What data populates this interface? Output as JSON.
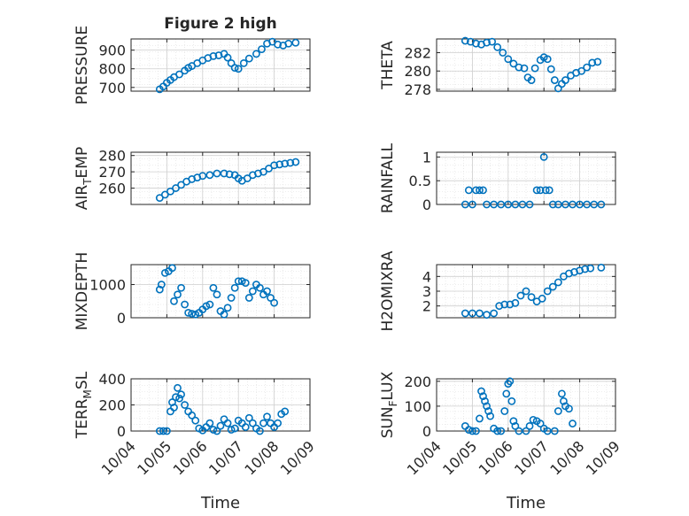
{
  "chart_data": [
    {
      "type": "scatter",
      "title": "Figure 2 high",
      "ylabel": "PRESSURE",
      "ylim": [
        680,
        960
      ],
      "yticks": [
        700,
        800,
        900
      ],
      "xlim": [
        0,
        5
      ],
      "series": [
        {
          "values": [
            [
              0.8,
              690
            ],
            [
              0.9,
              705
            ],
            [
              1.0,
              725
            ],
            [
              1.1,
              740
            ],
            [
              1.2,
              755
            ],
            [
              1.35,
              770
            ],
            [
              1.5,
              790
            ],
            [
              1.6,
              805
            ],
            [
              1.7,
              815
            ],
            [
              1.85,
              830
            ],
            [
              2.0,
              845
            ],
            [
              2.15,
              858
            ],
            [
              2.3,
              868
            ],
            [
              2.45,
              872
            ],
            [
              2.6,
              880
            ],
            [
              2.7,
              860
            ],
            [
              2.8,
              830
            ],
            [
              2.9,
              805
            ],
            [
              3.0,
              800
            ],
            [
              3.15,
              830
            ],
            [
              3.3,
              855
            ],
            [
              3.5,
              880
            ],
            [
              3.65,
              905
            ],
            [
              3.8,
              935
            ],
            [
              3.95,
              945
            ],
            [
              4.1,
              930
            ],
            [
              4.25,
              925
            ],
            [
              4.4,
              935
            ],
            [
              4.6,
              940
            ]
          ]
        }
      ]
    },
    {
      "type": "scatter",
      "ylabel": "THETA",
      "ylim": [
        277.8,
        283.5
      ],
      "yticks": [
        278,
        280,
        282
      ],
      "xlim": [
        0,
        5
      ],
      "series": [
        {
          "values": [
            [
              0.8,
              283.3
            ],
            [
              0.95,
              283.2
            ],
            [
              1.1,
              283.0
            ],
            [
              1.25,
              282.9
            ],
            [
              1.4,
              283.1
            ],
            [
              1.55,
              283.2
            ],
            [
              1.7,
              282.6
            ],
            [
              1.85,
              282.0
            ],
            [
              2.0,
              281.3
            ],
            [
              2.15,
              280.8
            ],
            [
              2.3,
              280.4
            ],
            [
              2.45,
              280.3
            ],
            [
              2.55,
              279.3
            ],
            [
              2.65,
              279.0
            ],
            [
              2.75,
              280.3
            ],
            [
              2.9,
              281.2
            ],
            [
              3.0,
              281.5
            ],
            [
              3.1,
              281.3
            ],
            [
              3.2,
              280.2
            ],
            [
              3.3,
              279.0
            ],
            [
              3.4,
              278.1
            ],
            [
              3.5,
              278.6
            ],
            [
              3.6,
              279.0
            ],
            [
              3.75,
              279.5
            ],
            [
              3.9,
              279.8
            ],
            [
              4.05,
              280.0
            ],
            [
              4.2,
              280.4
            ],
            [
              4.35,
              280.9
            ],
            [
              4.5,
              281.0
            ]
          ]
        }
      ]
    },
    {
      "type": "scatter",
      "ylabel": "AIR_TEMP",
      "ylim": [
        250,
        282
      ],
      "yticks": [
        260,
        270,
        280
      ],
      "xlim": [
        0,
        5
      ],
      "series": [
        {
          "values": [
            [
              0.8,
              254
            ],
            [
              0.95,
              256
            ],
            [
              1.1,
              258
            ],
            [
              1.25,
              260
            ],
            [
              1.4,
              262
            ],
            [
              1.55,
              264
            ],
            [
              1.7,
              265.5
            ],
            [
              1.85,
              266.5
            ],
            [
              2.0,
              267.5
            ],
            [
              2.2,
              268
            ],
            [
              2.4,
              269
            ],
            [
              2.6,
              269
            ],
            [
              2.75,
              268.5
            ],
            [
              2.9,
              268
            ],
            [
              3.0,
              266
            ],
            [
              3.1,
              264.5
            ],
            [
              3.25,
              266
            ],
            [
              3.4,
              268
            ],
            [
              3.55,
              269
            ],
            [
              3.7,
              270
            ],
            [
              3.85,
              272
            ],
            [
              4.0,
              274
            ],
            [
              4.15,
              274.5
            ],
            [
              4.3,
              275
            ],
            [
              4.45,
              275.5
            ],
            [
              4.6,
              276
            ]
          ]
        }
      ]
    },
    {
      "type": "scatter",
      "ylabel": "RAINFALL",
      "ylim": [
        0,
        1.1
      ],
      "yticks": [
        0,
        0.5,
        1
      ],
      "xlim": [
        0,
        5
      ],
      "series": [
        {
          "values": [
            [
              0.8,
              0
            ],
            [
              0.9,
              0.3
            ],
            [
              1.0,
              0
            ],
            [
              1.1,
              0.3
            ],
            [
              1.2,
              0.3
            ],
            [
              1.3,
              0.3
            ],
            [
              1.4,
              0
            ],
            [
              1.6,
              0
            ],
            [
              1.8,
              0
            ],
            [
              2.0,
              0
            ],
            [
              2.2,
              0
            ],
            [
              2.4,
              0
            ],
            [
              2.6,
              0
            ],
            [
              2.8,
              0.3
            ],
            [
              2.9,
              0.3
            ],
            [
              3.0,
              1.0
            ],
            [
              3.05,
              0.3
            ],
            [
              3.15,
              0.3
            ],
            [
              3.25,
              0
            ],
            [
              3.4,
              0
            ],
            [
              3.6,
              0
            ],
            [
              3.8,
              0
            ],
            [
              4.0,
              0
            ],
            [
              4.2,
              0
            ],
            [
              4.4,
              0
            ],
            [
              4.6,
              0
            ]
          ]
        }
      ]
    },
    {
      "type": "scatter",
      "ylabel": "MIXDEPTH",
      "ylim": [
        0,
        1600
      ],
      "yticks": [
        0,
        1000
      ],
      "xlim": [
        0,
        5
      ],
      "series": [
        {
          "values": [
            [
              0.8,
              850
            ],
            [
              0.85,
              1000
            ],
            [
              0.95,
              1350
            ],
            [
              1.05,
              1400
            ],
            [
              1.15,
              1500
            ],
            [
              1.2,
              500
            ],
            [
              1.3,
              700
            ],
            [
              1.4,
              900
            ],
            [
              1.5,
              400
            ],
            [
              1.6,
              150
            ],
            [
              1.7,
              120
            ],
            [
              1.8,
              100
            ],
            [
              1.9,
              150
            ],
            [
              2.0,
              250
            ],
            [
              2.1,
              350
            ],
            [
              2.2,
              400
            ],
            [
              2.3,
              900
            ],
            [
              2.4,
              700
            ],
            [
              2.5,
              200
            ],
            [
              2.6,
              100
            ],
            [
              2.7,
              300
            ],
            [
              2.8,
              600
            ],
            [
              2.9,
              900
            ],
            [
              3.0,
              1100
            ],
            [
              3.1,
              1100
            ],
            [
              3.2,
              1050
            ],
            [
              3.3,
              600
            ],
            [
              3.4,
              800
            ],
            [
              3.5,
              1000
            ],
            [
              3.6,
              900
            ],
            [
              3.7,
              700
            ],
            [
              3.8,
              800
            ],
            [
              3.9,
              600
            ],
            [
              4.0,
              450
            ]
          ]
        }
      ]
    },
    {
      "type": "scatter",
      "ylabel": "H2OMIXRA",
      "ylim": [
        1.2,
        4.8
      ],
      "yticks": [
        2,
        3,
        4
      ],
      "xlim": [
        0,
        5
      ],
      "series": [
        {
          "values": [
            [
              0.8,
              1.5
            ],
            [
              1.0,
              1.5
            ],
            [
              1.2,
              1.5
            ],
            [
              1.4,
              1.4
            ],
            [
              1.6,
              1.5
            ],
            [
              1.75,
              2.0
            ],
            [
              1.9,
              2.1
            ],
            [
              2.05,
              2.1
            ],
            [
              2.2,
              2.2
            ],
            [
              2.35,
              2.7
            ],
            [
              2.5,
              3.0
            ],
            [
              2.65,
              2.6
            ],
            [
              2.8,
              2.3
            ],
            [
              2.95,
              2.5
            ],
            [
              3.1,
              3.0
            ],
            [
              3.25,
              3.3
            ],
            [
              3.4,
              3.6
            ],
            [
              3.55,
              4.0
            ],
            [
              3.7,
              4.2
            ],
            [
              3.85,
              4.3
            ],
            [
              4.0,
              4.4
            ],
            [
              4.15,
              4.5
            ],
            [
              4.3,
              4.55
            ],
            [
              4.6,
              4.6
            ]
          ]
        }
      ]
    },
    {
      "type": "scatter",
      "ylabel": "TERR_MSL",
      "ylim": [
        0,
        400
      ],
      "yticks": [
        0,
        200,
        400
      ],
      "xlim": [
        0,
        5
      ],
      "series": [
        {
          "values": [
            [
              0.8,
              0
            ],
            [
              0.9,
              0
            ],
            [
              1.0,
              0
            ],
            [
              1.1,
              150
            ],
            [
              1.15,
              220
            ],
            [
              1.2,
              180
            ],
            [
              1.25,
              260
            ],
            [
              1.3,
              330
            ],
            [
              1.35,
              250
            ],
            [
              1.4,
              280
            ],
            [
              1.5,
              200
            ],
            [
              1.6,
              150
            ],
            [
              1.7,
              120
            ],
            [
              1.8,
              80
            ],
            [
              1.9,
              20
            ],
            [
              2.0,
              5
            ],
            [
              2.1,
              30
            ],
            [
              2.2,
              60
            ],
            [
              2.3,
              10
            ],
            [
              2.4,
              0
            ],
            [
              2.5,
              40
            ],
            [
              2.6,
              90
            ],
            [
              2.7,
              60
            ],
            [
              2.8,
              10
            ],
            [
              2.9,
              20
            ],
            [
              3.0,
              80
            ],
            [
              3.1,
              60
            ],
            [
              3.2,
              30
            ],
            [
              3.3,
              100
            ],
            [
              3.4,
              60
            ],
            [
              3.5,
              20
            ],
            [
              3.6,
              0
            ],
            [
              3.7,
              60
            ],
            [
              3.8,
              110
            ],
            [
              3.9,
              60
            ],
            [
              4.0,
              30
            ],
            [
              4.1,
              60
            ],
            [
              4.2,
              130
            ],
            [
              4.3,
              150
            ]
          ]
        }
      ]
    },
    {
      "type": "scatter",
      "ylabel": "SUN_FLUX",
      "ylim": [
        0,
        210
      ],
      "yticks": [
        0,
        100,
        200
      ],
      "xlim": [
        0,
        5
      ],
      "series": [
        {
          "values": [
            [
              0.8,
              20
            ],
            [
              0.9,
              5
            ],
            [
              1.0,
              0
            ],
            [
              1.1,
              0
            ],
            [
              1.2,
              50
            ],
            [
              1.25,
              160
            ],
            [
              1.3,
              140
            ],
            [
              1.35,
              120
            ],
            [
              1.4,
              100
            ],
            [
              1.45,
              80
            ],
            [
              1.5,
              60
            ],
            [
              1.6,
              10
            ],
            [
              1.7,
              0
            ],
            [
              1.8,
              0
            ],
            [
              1.9,
              80
            ],
            [
              1.95,
              150
            ],
            [
              2.0,
              190
            ],
            [
              2.05,
              200
            ],
            [
              2.1,
              120
            ],
            [
              2.15,
              40
            ],
            [
              2.2,
              20
            ],
            [
              2.3,
              0
            ],
            [
              2.5,
              0
            ],
            [
              2.6,
              20
            ],
            [
              2.7,
              45
            ],
            [
              2.8,
              40
            ],
            [
              2.9,
              30
            ],
            [
              3.0,
              10
            ],
            [
              3.1,
              0
            ],
            [
              3.3,
              0
            ],
            [
              3.4,
              80
            ],
            [
              3.5,
              150
            ],
            [
              3.55,
              120
            ],
            [
              3.6,
              100
            ],
            [
              3.7,
              90
            ],
            [
              3.8,
              30
            ]
          ]
        }
      ]
    }
  ],
  "x_axis": {
    "xlabel": "Time",
    "tick_labels": [
      "10/04",
      "10/05",
      "10/06",
      "10/07",
      "10/08",
      "10/09"
    ]
  },
  "colors": {
    "marker": "#0072BD",
    "axis": "#262626",
    "grid": "#dcdcdc"
  }
}
